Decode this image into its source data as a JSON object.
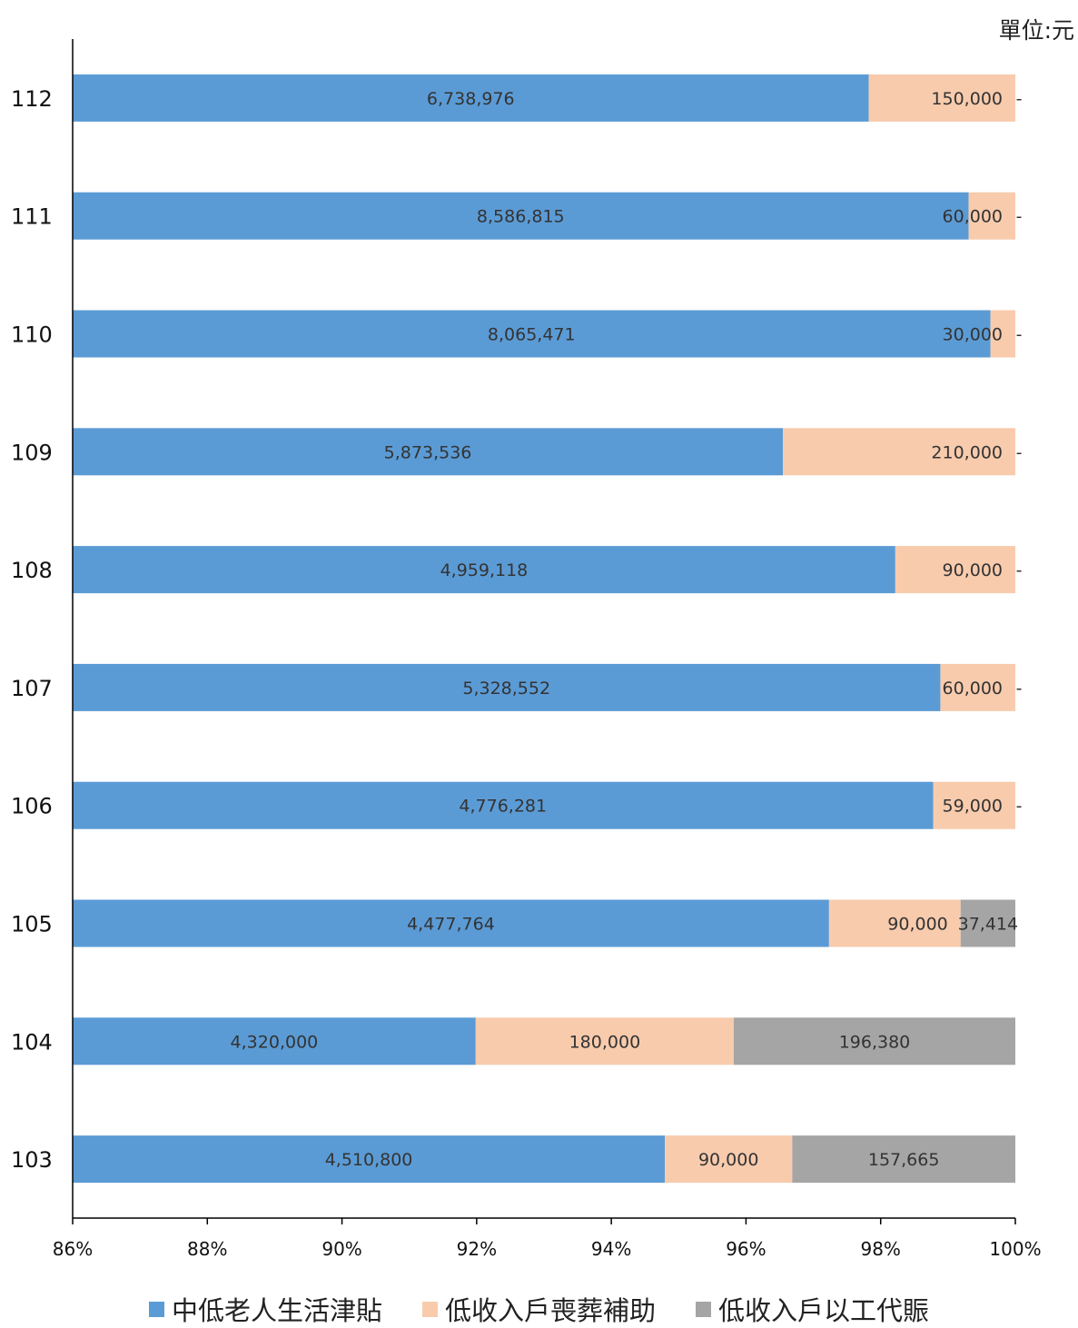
{
  "unit_label": "單位:元",
  "colors": {
    "s0": "#5b9bd5",
    "s1": "#f8cbad",
    "s2": "#a5a5a5"
  },
  "chart_data": {
    "type": "bar",
    "orientation": "horizontal",
    "stacked": "percent",
    "categories": [
      "112",
      "111",
      "110",
      "109",
      "108",
      "107",
      "106",
      "105",
      "104",
      "103"
    ],
    "series": [
      {
        "name": "中低老人生活津貼",
        "values": [
          6738976,
          8586815,
          8065471,
          5873536,
          4959118,
          5328552,
          4776281,
          4477764,
          4320000,
          4510800
        ],
        "labels": [
          "6,738,976",
          "8,586,815",
          "8,065,471",
          "5,873,536",
          "4,959,118",
          "5,328,552",
          "4,776,281",
          "4,477,764",
          "4,320,000",
          "4,510,800"
        ]
      },
      {
        "name": "低收入戶喪葬補助",
        "values": [
          150000,
          60000,
          30000,
          210000,
          90000,
          60000,
          59000,
          90000,
          180000,
          90000
        ],
        "labels": [
          "150,000",
          "60,000",
          "30,000",
          "210,000",
          "90,000",
          "60,000",
          "59,000",
          "90,000",
          "180,000",
          "90,000"
        ]
      },
      {
        "name": "低收入戶以工代賑",
        "values": [
          0,
          0,
          0,
          0,
          0,
          0,
          0,
          37414,
          196380,
          157665
        ],
        "labels": [
          "-",
          "-",
          "-",
          "-",
          "-",
          "-",
          "-",
          "37,414",
          "196,380",
          "157,665"
        ]
      }
    ],
    "xlim": [
      86,
      100
    ],
    "xticks": [
      "86%",
      "88%",
      "90%",
      "92%",
      "94%",
      "96%",
      "98%",
      "100%"
    ],
    "legend_position": "bottom",
    "grid": false
  }
}
